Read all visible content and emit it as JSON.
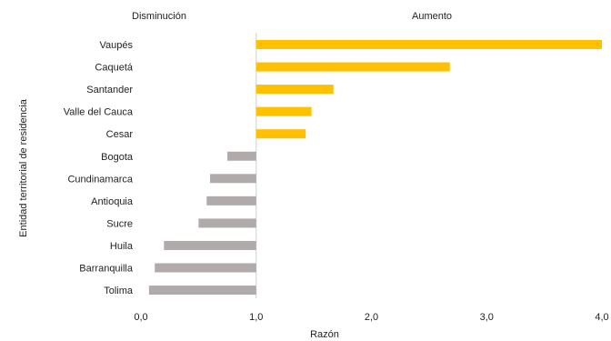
{
  "chart_data": {
    "type": "bar",
    "orientation": "horizontal",
    "title": "",
    "xlabel": "Razón",
    "ylabel": "Entidad territorial de residencia",
    "header_left": "Disminución",
    "header_right": "Aumento",
    "baseline": 1.0,
    "xlim": [
      0,
      4
    ],
    "xticks": [
      0,
      1,
      2,
      3,
      4
    ],
    "xtick_labels": [
      "0,0",
      "1,0",
      "2,0",
      "3,0",
      "4,0"
    ],
    "grid": false,
    "categories": [
      "Vaupés",
      "Caquetá",
      "Santander",
      "Valle del Cauca",
      "Cesar",
      "Bogota",
      "Cundinamarca",
      "Antioquia",
      "Sucre",
      "Huila",
      "Barranquilla",
      "Tolima"
    ],
    "values": [
      4.0,
      2.68,
      1.67,
      1.48,
      1.43,
      0.75,
      0.6,
      0.57,
      0.5,
      0.2,
      0.12,
      0.07
    ],
    "colors": {
      "increase": "#FFC000",
      "decrease": "#B0ABAA",
      "baseline_line": "#D0D0D0"
    }
  }
}
